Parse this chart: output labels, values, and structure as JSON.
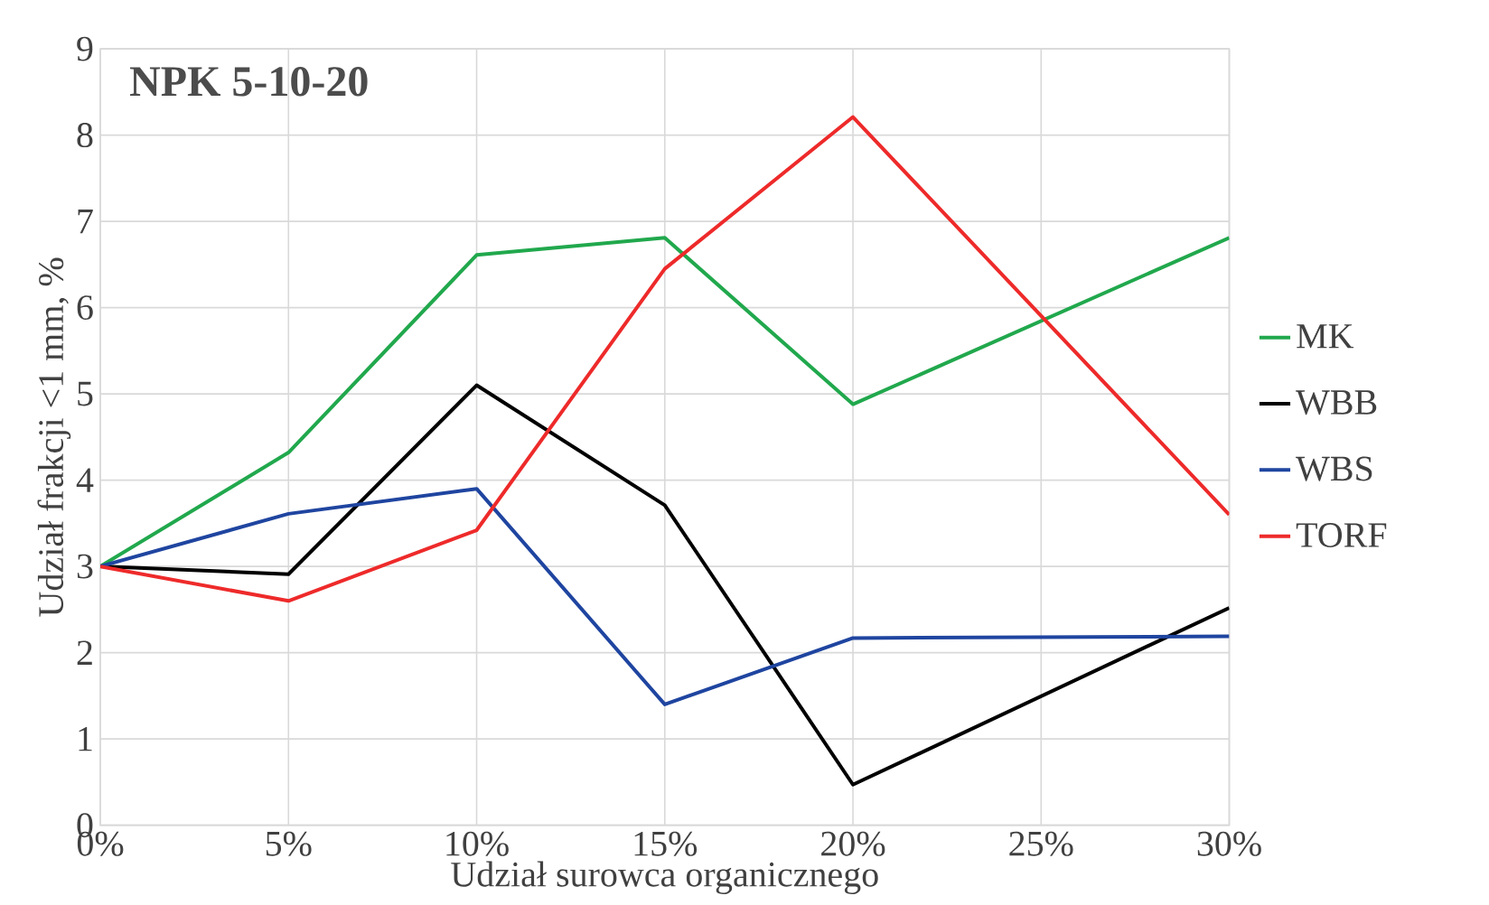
{
  "chart_data": {
    "type": "line",
    "title": "NPK 5-10-20",
    "xlabel": "Udział surowca organicznego",
    "ylabel": "Udział  frakcji <1 mm, %",
    "x": [
      0,
      5,
      10,
      15,
      20,
      30
    ],
    "series": [
      {
        "name": "MK",
        "color": "#21a84d",
        "values": [
          3.0,
          4.32,
          6.61,
          6.81,
          4.88,
          6.81
        ]
      },
      {
        "name": "WBB",
        "color": "#000000",
        "values": [
          3.0,
          2.91,
          5.1,
          3.71,
          0.47,
          2.52
        ]
      },
      {
        "name": "WBS",
        "color": "#1f45a0",
        "values": [
          3.0,
          3.61,
          3.9,
          1.4,
          2.17,
          2.19
        ]
      },
      {
        "name": "TORF",
        "color": "#ee2a2a",
        "values": [
          3.0,
          2.6,
          3.42,
          6.45,
          8.21,
          3.6
        ]
      }
    ],
    "xlim": [
      0,
      30
    ],
    "xticks": [
      {
        "value": 0,
        "label": "0%"
      },
      {
        "value": 5,
        "label": "5%"
      },
      {
        "value": 10,
        "label": "10%"
      },
      {
        "value": 15,
        "label": "15%"
      },
      {
        "value": 20,
        "label": "20%"
      },
      {
        "value": 25,
        "label": "25%"
      },
      {
        "value": 30,
        "label": "30%"
      }
    ],
    "ylim": [
      0,
      9
    ],
    "yticks": [
      0,
      1,
      2,
      3,
      4,
      5,
      6,
      7,
      8,
      9
    ],
    "grid": true,
    "legend": "right",
    "marker": "none",
    "line_style": "solid"
  }
}
